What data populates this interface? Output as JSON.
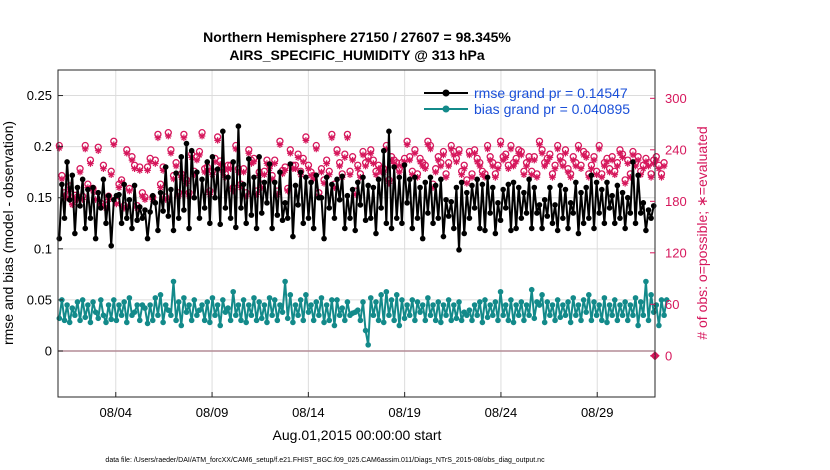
{
  "chart_data": {
    "type": "line",
    "title_line1": "Northern Hemisphere 27150 / 27607 = 98.345%",
    "title_line2": "AIRS_SPECIFIC_HUMIDITY @ 313 hPa",
    "xlabel": "Aug.01,2015 00:00:00 start",
    "ylabel_left": "rmse and bias (model - observation)",
    "ylabel_right": "# of obs: o=possible; ∗=evaluated",
    "footer": "data file: /Users/raeder/DAI/ATM_forcXX/CAM6_setup/f.e21.FHIST_BGC.f09_025.CAM6assim.011/Diags_NTrS_2015-08/obs_diag_output.nc",
    "x_range_days": [
      0.0,
      31.0
    ],
    "ylim_left": [
      -0.045,
      0.275
    ],
    "ylim_right": [
      -48,
      333
    ],
    "x_tick_positions_days": [
      3,
      8,
      13,
      18,
      23,
      28
    ],
    "x_tick_labels": [
      "08/04",
      "08/09",
      "08/14",
      "08/19",
      "08/24",
      "08/29"
    ],
    "y_left_ticks": [
      0,
      0.05,
      0.1,
      0.15,
      0.2,
      0.25
    ],
    "y_left_tick_labels": [
      "0",
      "0.05",
      "0.1",
      "0.15",
      "0.2",
      "0.25"
    ],
    "y_right_ticks": [
      0,
      60,
      120,
      180,
      240,
      300
    ],
    "y_right_tick_labels": [
      "0",
      "60",
      "120",
      "180",
      "240",
      "300"
    ],
    "legend_position": "top-right",
    "legend": [
      "rmse grand pr = 0.14547",
      "bias grand pr = 0.040895"
    ],
    "grid": true,
    "colors": {
      "rmse": "#000000",
      "bias": "#138a8a",
      "obs": "#d6175c",
      "legend_text": "#1a4fd8",
      "zero_line": "#b48c96",
      "grid": "#dcdcdc"
    },
    "series": [
      {
        "name": "rmse",
        "axis": "left",
        "values": [
          0.11,
          0.163,
          0.13,
          0.185,
          0.148,
          0.172,
          0.115,
          0.16,
          0.142,
          0.168,
          0.12,
          0.158,
          0.13,
          0.16,
          0.11,
          0.155,
          0.14,
          0.168,
          0.125,
          0.152,
          0.103,
          0.148,
          0.152,
          0.153,
          0.125,
          0.163,
          0.13,
          0.148,
          0.12,
          0.162,
          0.128,
          0.141,
          0.13,
          0.138,
          0.11,
          0.136,
          0.152,
          0.145,
          0.118,
          0.155,
          0.137,
          0.18,
          0.132,
          0.158,
          0.118,
          0.174,
          0.13,
          0.19,
          0.138,
          0.203,
          0.12,
          0.196,
          0.15,
          0.175,
          0.13,
          0.168,
          0.14,
          0.185,
          0.125,
          0.19,
          0.15,
          0.178,
          0.124,
          0.215,
          0.14,
          0.17,
          0.13,
          0.185,
          0.121,
          0.22,
          0.14,
          0.163,
          0.125,
          0.188,
          0.133,
          0.17,
          0.12,
          0.19,
          0.135,
          0.165,
          0.145,
          0.183,
          0.12,
          0.165,
          0.133,
          0.175,
          0.128,
          0.145,
          0.13,
          0.183,
          0.112,
          0.162,
          0.143,
          0.175,
          0.125,
          0.17,
          0.13,
          0.165,
          0.12,
          0.172,
          0.15,
          0.15,
          0.11,
          0.17,
          0.14,
          0.163,
          0.13,
          0.168,
          0.148,
          0.171,
          0.12,
          0.152,
          0.13,
          0.158,
          0.118,
          0.165,
          0.143,
          0.17,
          0.128,
          0.162,
          0.13,
          0.16,
          0.115,
          0.168,
          0.14,
          0.196,
          0.125,
          0.215,
          0.12,
          0.18,
          0.13,
          0.17,
          0.125,
          0.182,
          0.145,
          0.168,
          0.12,
          0.17,
          0.13,
          0.16,
          0.11,
          0.165,
          0.135,
          0.17,
          0.125,
          0.162,
          0.13,
          0.168,
          0.112,
          0.148,
          0.132,
          0.146,
          0.12,
          0.16,
          0.099,
          0.165,
          0.115,
          0.155,
          0.13,
          0.162,
          0.14,
          0.168,
          0.12,
          0.163,
          0.118,
          0.17,
          0.135,
          0.16,
          0.115,
          0.145,
          0.128,
          0.158,
          0.14,
          0.163,
          0.118,
          0.165,
          0.12,
          0.16,
          0.13,
          0.155,
          0.135,
          0.168,
          0.12,
          0.16,
          0.135,
          0.143,
          0.12,
          0.148,
          0.132,
          0.16,
          0.125,
          0.143,
          0.118,
          0.162,
          0.13,
          0.158,
          0.12,
          0.145,
          0.135,
          0.165,
          0.115,
          0.155,
          0.125,
          0.16,
          0.13,
          0.172,
          0.12,
          0.165,
          0.135,
          0.158,
          0.125,
          0.165,
          0.14,
          0.152,
          0.125,
          0.162,
          0.13,
          0.155,
          0.12,
          0.15,
          0.135,
          0.185,
          0.125,
          0.172,
          0.135,
          0.145,
          0.118,
          0.138,
          0.13,
          0.142
        ]
      },
      {
        "name": "bias",
        "axis": "left",
        "values": [
          0.032,
          0.05,
          0.03,
          0.045,
          0.028,
          0.042,
          0.035,
          0.048,
          0.03,
          0.05,
          0.033,
          0.045,
          0.028,
          0.048,
          0.038,
          0.032,
          0.05,
          0.035,
          0.028,
          0.045,
          0.031,
          0.05,
          0.03,
          0.045,
          0.035,
          0.048,
          0.028,
          0.052,
          0.035,
          0.038,
          0.045,
          0.03,
          0.045,
          0.042,
          0.027,
          0.045,
          0.03,
          0.052,
          0.035,
          0.055,
          0.028,
          0.045,
          0.04,
          0.035,
          0.068,
          0.03,
          0.048,
          0.025,
          0.052,
          0.038,
          0.045,
          0.03,
          0.05,
          0.035,
          0.04,
          0.045,
          0.03,
          0.048,
          0.028,
          0.052,
          0.035,
          0.045,
          0.025,
          0.05,
          0.038,
          0.042,
          0.03,
          0.058,
          0.035,
          0.045,
          0.03,
          0.05,
          0.028,
          0.045,
          0.035,
          0.052,
          0.03,
          0.048,
          0.032,
          0.045,
          0.028,
          0.052,
          0.035,
          0.05,
          0.03,
          0.045,
          0.038,
          0.068,
          0.032,
          0.055,
          0.028,
          0.045,
          0.035,
          0.05,
          0.03,
          0.055,
          0.038,
          0.045,
          0.03,
          0.048,
          0.035,
          0.052,
          0.028,
          0.045,
          0.03,
          0.05,
          0.025,
          0.05,
          0.035,
          0.042,
          0.03,
          0.048,
          0.035,
          0.037,
          0.038,
          0.04,
          0.03,
          0.048,
          0.02,
          0.006,
          0.052,
          0.035,
          0.048,
          0.03,
          0.055,
          0.028,
          0.058,
          0.035,
          0.05,
          0.03,
          0.055,
          0.025,
          0.05,
          0.032,
          0.045,
          0.035,
          0.05,
          0.03,
          0.048,
          0.038,
          0.045,
          0.03,
          0.052,
          0.035,
          0.045,
          0.03,
          0.048,
          0.028,
          0.045,
          0.035,
          0.05,
          0.03,
          0.045,
          0.032,
          0.048,
          0.03,
          0.038,
          0.035,
          0.04,
          0.03,
          0.045,
          0.035,
          0.048,
          0.028,
          0.05,
          0.033,
          0.045,
          0.035,
          0.048,
          0.03,
          0.058,
          0.035,
          0.045,
          0.03,
          0.05,
          0.028,
          0.045,
          0.035,
          0.048,
          0.03,
          0.045,
          0.035,
          0.06,
          0.032,
          0.048,
          0.045,
          0.055,
          0.028,
          0.048,
          0.035,
          0.045,
          0.03,
          0.05,
          0.033,
          0.045,
          0.035,
          0.048,
          0.028,
          0.052,
          0.035,
          0.045,
          0.03,
          0.05,
          0.038,
          0.055,
          0.03,
          0.048,
          0.035,
          0.045,
          0.03,
          0.052,
          0.028,
          0.045,
          0.035,
          0.05,
          0.03,
          0.045,
          0.035,
          0.048,
          0.03,
          0.045,
          0.035,
          0.052,
          0.025,
          0.048,
          0.035,
          0.068,
          0.03,
          0.055,
          0.038,
          0.045,
          0.025,
          0.05,
          0.035,
          0.05
        ]
      },
      {
        "name": "obs_possible",
        "axis": "right",
        "values": [
          245,
          210,
          190,
          188,
          198,
          180,
          187,
          185,
          218,
          186,
          245,
          200,
          228,
          195,
          185,
          243,
          178,
          222,
          175,
          186,
          215,
          250,
          180,
          200,
          205,
          175,
          240,
          195,
          232,
          222,
          175,
          220,
          190,
          185,
          220,
          230,
          185,
          228,
          258,
          200,
          220,
          185,
          260,
          240,
          210,
          225,
          190,
          212,
          258,
          205,
          190,
          235,
          215,
          232,
          238,
          260,
          218,
          220,
          192,
          215,
          230,
          255,
          227,
          218,
          212,
          222,
          222,
          196,
          245,
          218,
          200,
          218,
          190,
          240,
          228,
          230,
          192,
          214,
          200,
          215,
          228,
          222,
          210,
          228,
          192,
          250,
          216,
          220,
          195,
          240,
          222,
          222,
          235,
          215,
          230,
          255,
          222,
          214,
          210,
          245,
          190,
          218,
          205,
          228,
          215,
          258,
          200,
          240,
          225,
          212,
          235,
          258,
          215,
          232,
          192,
          222,
          212,
          238,
          225,
          232,
          240,
          228,
          215,
          222,
          218,
          218,
          245,
          205,
          232,
          228,
          225,
          218,
          225,
          230,
          250,
          232,
          215,
          240,
          212,
          230,
          225,
          222,
          250,
          245,
          200,
          218,
          232,
          225,
          238,
          212,
          225,
          245,
          238,
          230,
          240,
          215,
          222,
          205,
          238,
          212,
          240,
          230,
          225,
          215,
          212,
          245,
          232,
          225,
          212,
          222,
          250,
          232,
          235,
          222,
          245,
          225,
          230,
          240,
          238,
          215,
          225,
          232,
          215,
          232,
          212,
          250,
          240,
          225,
          230,
          235,
          212,
          222,
          245,
          232,
          225,
          240,
          218,
          212,
          232,
          225,
          245,
          222,
          238,
          235,
          212,
          222,
          232,
          215,
          245,
          212,
          225,
          230,
          218,
          232,
          215,
          225,
          240,
          235,
          205,
          228,
          212,
          238,
          225,
          232,
          215,
          222,
          230,
          225,
          212,
          228,
          232,
          222,
          212,
          225
        ]
      },
      {
        "name": "obs_evaluated",
        "axis": "right",
        "values": [
          242,
          206,
          186,
          184,
          194,
          176,
          184,
          182,
          214,
          182,
          241,
          196,
          224,
          192,
          182,
          239,
          175,
          218,
          172,
          182,
          211,
          246,
          177,
          196,
          202,
          172,
          236,
          192,
          228,
          218,
          172,
          216,
          186,
          182,
          216,
          226,
          182,
          224,
          254,
          196,
          216,
          182,
          256,
          236,
          206,
          221,
          186,
          208,
          254,
          201,
          186,
          231,
          211,
          228,
          234,
          256,
          214,
          216,
          188,
          211,
          226,
          251,
          223,
          214,
          208,
          218,
          218,
          192,
          241,
          214,
          196,
          214,
          186,
          236,
          224,
          226,
          188,
          210,
          196,
          211,
          224,
          218,
          206,
          224,
          188,
          246,
          212,
          216,
          192,
          236,
          218,
          218,
          231,
          211,
          226,
          251,
          218,
          210,
          206,
          241,
          186,
          214,
          201,
          224,
          211,
          254,
          196,
          236,
          221,
          208,
          231,
          254,
          211,
          228,
          188,
          218,
          208,
          234,
          221,
          228,
          236,
          224,
          211,
          218,
          214,
          214,
          241,
          201,
          228,
          224,
          221,
          214,
          221,
          226,
          246,
          228,
          211,
          236,
          208,
          226,
          221,
          218,
          246,
          241,
          196,
          214,
          228,
          221,
          234,
          208,
          221,
          241,
          234,
          226,
          236,
          211,
          218,
          201,
          234,
          208,
          236,
          226,
          221,
          211,
          208,
          241,
          228,
          221,
          208,
          218,
          246,
          228,
          231,
          218,
          241,
          221,
          226,
          236,
          234,
          211,
          221,
          228,
          211,
          228,
          208,
          246,
          236,
          221,
          226,
          231,
          208,
          218,
          241,
          228,
          221,
          236,
          214,
          208,
          228,
          221,
          241,
          218,
          234,
          231,
          208,
          218,
          228,
          211,
          241,
          208,
          221,
          226,
          214,
          228,
          211,
          221,
          236,
          231,
          201,
          224,
          208,
          234,
          221,
          228,
          211,
          218,
          226,
          221,
          208,
          224,
          228,
          218,
          208,
          221
        ]
      }
    ],
    "endpoint_marker_right": 0
  }
}
